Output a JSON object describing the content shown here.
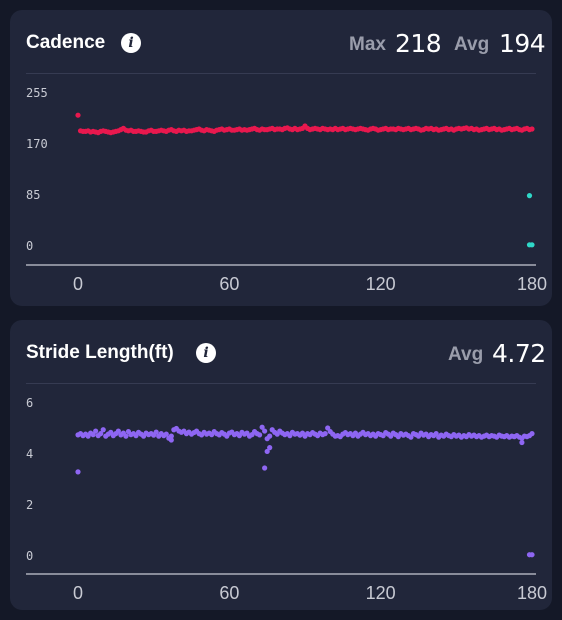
{
  "cadence": {
    "title": "Cadence",
    "info_icon": "info-icon",
    "max_label": "Max",
    "max_value": "218",
    "avg_label": "Avg",
    "avg_value": "194",
    "color": "#e8184e",
    "outlier_color": "#2fd8c8"
  },
  "stride": {
    "title": "Stride Length(ft)",
    "info_icon": "info-icon",
    "avg_label": "Avg",
    "avg_value": "4.72",
    "color": "#8e66f2"
  },
  "chart_data": [
    {
      "type": "scatter",
      "title": "Cadence",
      "ylim": [
        0,
        255
      ],
      "xlim": [
        0,
        180
      ],
      "y_ticks": [
        "255",
        "170",
        "85",
        "0"
      ],
      "x_ticks": [
        "0",
        "60",
        "120",
        "180"
      ],
      "series": [
        {
          "color": "#e8184e",
          "x": [
            0,
            1,
            2,
            3,
            4,
            5,
            6,
            7,
            8,
            9,
            10,
            11,
            12,
            13,
            14,
            15,
            16,
            17,
            18,
            19,
            20,
            21,
            22,
            23,
            24,
            25,
            26,
            27,
            28,
            29,
            30,
            31,
            32,
            33,
            34,
            35,
            36,
            37,
            38,
            39,
            40,
            41,
            42,
            43,
            44,
            45,
            46,
            47,
            48,
            49,
            50,
            51,
            52,
            53,
            54,
            55,
            56,
            57,
            58,
            59,
            60,
            61,
            62,
            63,
            64,
            65,
            66,
            67,
            68,
            69,
            70,
            71,
            72,
            73,
            74,
            75,
            76,
            77,
            78,
            79,
            80,
            81,
            82,
            83,
            84,
            85,
            86,
            87,
            88,
            89,
            90,
            91,
            92,
            93,
            94,
            95,
            96,
            97,
            98,
            99,
            100,
            101,
            102,
            103,
            104,
            105,
            106,
            107,
            108,
            109,
            110,
            111,
            112,
            113,
            114,
            115,
            116,
            117,
            118,
            119,
            120,
            121,
            122,
            123,
            124,
            125,
            126,
            127,
            128,
            129,
            130,
            131,
            132,
            133,
            134,
            135,
            136,
            137,
            138,
            139,
            140,
            141,
            142,
            143,
            144,
            145,
            146,
            147,
            148,
            149,
            150,
            151,
            152,
            153,
            154,
            155,
            156,
            157,
            158,
            159,
            160,
            161,
            162,
            163,
            164,
            165,
            166,
            167,
            168,
            169,
            170,
            171,
            172,
            173,
            174,
            175,
            176,
            177,
            178,
            179,
            180
          ],
          "y": [
            218,
            192,
            191,
            191,
            192,
            190,
            191,
            190,
            189,
            191,
            192,
            191,
            190,
            189,
            190,
            191,
            192,
            194,
            196,
            193,
            192,
            193,
            191,
            191,
            192,
            191,
            190,
            190,
            192,
            193,
            191,
            191,
            192,
            193,
            192,
            191,
            193,
            194,
            192,
            191,
            193,
            192,
            193,
            191,
            192,
            192,
            193,
            194,
            195,
            193,
            192,
            194,
            193,
            192,
            191,
            193,
            194,
            195,
            193,
            194,
            195,
            193,
            193,
            194,
            195,
            193,
            194,
            193,
            194,
            195,
            196,
            194,
            193,
            195,
            194,
            194,
            195,
            196,
            194,
            195,
            195,
            194,
            196,
            197,
            195,
            194,
            196,
            194,
            195,
            196,
            200,
            196,
            194,
            195,
            196,
            195,
            194,
            196,
            195,
            194,
            195,
            194,
            196,
            194,
            195,
            196,
            194,
            195,
            196,
            195,
            194,
            195,
            196,
            195,
            194,
            193,
            195,
            196,
            195,
            193,
            194,
            195,
            196,
            194,
            195,
            195,
            194,
            196,
            195,
            194,
            195,
            196,
            194,
            195,
            196,
            195,
            193,
            194,
            196,
            195,
            196,
            194,
            195,
            193,
            194,
            195,
            196,
            194,
            195,
            193,
            195,
            196,
            195,
            196,
            197,
            195,
            196,
            194,
            195,
            193,
            194,
            195,
            196,
            194,
            195,
            196,
            194,
            195,
            193,
            194,
            195,
            196,
            194,
            195,
            196,
            194,
            193,
            195,
            196,
            194,
            195
          ]
        },
        {
          "color": "#2fd8c8",
          "x": [
            179,
            180,
            179
          ],
          "y": [
            2,
            2,
            84
          ]
        }
      ]
    },
    {
      "type": "scatter",
      "title": "Stride Length(ft)",
      "ylim": [
        0,
        6
      ],
      "xlim": [
        0,
        180
      ],
      "y_ticks": [
        "6",
        "4",
        "2",
        "0"
      ],
      "x_ticks": [
        "0",
        "60",
        "120",
        "180"
      ],
      "series": [
        {
          "color": "#8e66f2",
          "x": [
            0,
            1,
            2,
            3,
            4,
            5,
            6,
            7,
            8,
            9,
            10,
            11,
            12,
            13,
            14,
            15,
            16,
            17,
            18,
            19,
            20,
            21,
            22,
            23,
            24,
            25,
            26,
            27,
            28,
            29,
            30,
            31,
            32,
            33,
            34,
            35,
            36,
            37,
            38,
            39,
            40,
            41,
            42,
            43,
            44,
            45,
            46,
            47,
            48,
            49,
            50,
            51,
            52,
            53,
            54,
            55,
            56,
            57,
            58,
            59,
            60,
            61,
            62,
            63,
            64,
            65,
            66,
            67,
            68,
            69,
            70,
            71,
            72,
            73,
            74,
            75,
            76,
            77,
            78,
            79,
            80,
            81,
            82,
            83,
            84,
            85,
            86,
            87,
            88,
            89,
            90,
            91,
            92,
            93,
            94,
            95,
            96,
            97,
            98,
            99,
            100,
            101,
            102,
            103,
            104,
            105,
            106,
            107,
            108,
            109,
            110,
            111,
            112,
            113,
            114,
            115,
            116,
            117,
            118,
            119,
            120,
            121,
            122,
            123,
            124,
            125,
            126,
            127,
            128,
            129,
            130,
            131,
            132,
            133,
            134,
            135,
            136,
            137,
            138,
            139,
            140,
            141,
            142,
            143,
            144,
            145,
            146,
            147,
            148,
            149,
            150,
            151,
            152,
            153,
            154,
            155,
            156,
            157,
            158,
            159,
            160,
            161,
            162,
            163,
            164,
            165,
            166,
            167,
            168,
            169,
            170,
            171,
            172,
            173,
            174,
            175,
            176,
            177,
            178,
            179,
            180,
            0,
            37,
            74,
            75,
            76,
            176
          ],
          "y": [
            4.75,
            4.8,
            4.72,
            4.78,
            4.7,
            4.82,
            4.76,
            4.9,
            4.72,
            4.8,
            4.95,
            4.7,
            4.78,
            4.85,
            4.72,
            4.8,
            4.9,
            4.75,
            4.82,
            4.7,
            4.88,
            4.76,
            4.8,
            4.72,
            4.85,
            4.78,
            4.7,
            4.82,
            4.76,
            4.8,
            4.74,
            4.86,
            4.7,
            4.8,
            4.72,
            4.78,
            4.62,
            4.7,
            4.95,
            5.0,
            4.9,
            4.85,
            4.9,
            4.8,
            4.86,
            4.78,
            4.84,
            4.9,
            4.8,
            4.75,
            4.85,
            4.78,
            4.82,
            4.76,
            4.88,
            4.8,
            4.75,
            4.84,
            4.78,
            4.7,
            4.82,
            4.86,
            4.76,
            4.8,
            4.72,
            4.85,
            4.78,
            4.82,
            4.7,
            4.76,
            4.88,
            4.8,
            4.75,
            5.05,
            4.9,
            4.6,
            4.7,
            4.95,
            4.85,
            4.78,
            4.9,
            4.82,
            4.76,
            4.8,
            4.72,
            4.85,
            4.78,
            4.8,
            4.74,
            4.82,
            4.7,
            4.8,
            4.76,
            4.84,
            4.78,
            4.72,
            4.82,
            4.76,
            4.8,
            5.02,
            4.88,
            4.78,
            4.7,
            4.72,
            4.68,
            4.78,
            4.84,
            4.76,
            4.8,
            4.72,
            4.82,
            4.7,
            4.78,
            4.85,
            4.76,
            4.8,
            4.72,
            4.78,
            4.7,
            4.8,
            4.76,
            4.72,
            4.84,
            4.78,
            4.7,
            4.82,
            4.76,
            4.68,
            4.8,
            4.74,
            4.78,
            4.72,
            4.66,
            4.8,
            4.76,
            4.7,
            4.82,
            4.74,
            4.78,
            4.68,
            4.76,
            4.72,
            4.8,
            4.66,
            4.74,
            4.7,
            4.78,
            4.72,
            4.68,
            4.76,
            4.7,
            4.74,
            4.66,
            4.72,
            4.68,
            4.76,
            4.7,
            4.74,
            4.68,
            4.72,
            4.66,
            4.7,
            4.74,
            4.68,
            4.72,
            4.7,
            4.66,
            4.74,
            4.7,
            4.68,
            4.72,
            4.66,
            4.7,
            4.68,
            4.72,
            4.66,
            4.62,
            4.7,
            4.68,
            4.72,
            4.8,
            3.3,
            4.55,
            3.45,
            4.1,
            4.25,
            4.45
          ],
          "edge_outliers": []
        },
        {
          "color": "#8e66f2",
          "x": [
            179,
            180
          ],
          "y": [
            0.05,
            0.05
          ]
        }
      ]
    }
  ]
}
